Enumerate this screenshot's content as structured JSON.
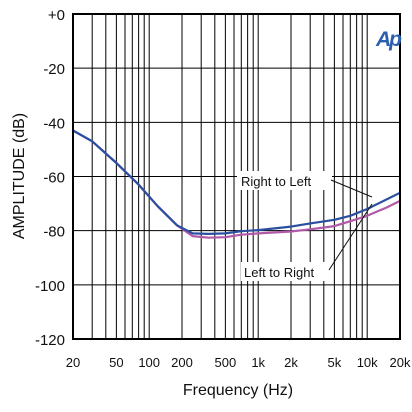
{
  "chart_data": {
    "type": "line",
    "xlabel": "Frequency (Hz)",
    "ylabel": "AMPLITUDE (dB)",
    "xscale": "log",
    "xlim": [
      20,
      20000
    ],
    "ylim": [
      -120,
      0
    ],
    "grid": true,
    "x_tick_values": [
      20,
      50,
      100,
      200,
      500,
      1000,
      2000,
      5000,
      10000,
      20000
    ],
    "x_tick_labels": [
      "20",
      "50",
      "100",
      "200",
      "500",
      "1k",
      "2k",
      "5k",
      "10k",
      "20k"
    ],
    "y_tick_values": [
      0,
      -20,
      -40,
      -60,
      -80,
      -100,
      -120
    ],
    "y_tick_labels": [
      "+0",
      "-20",
      "-40",
      "-60",
      "-80",
      "-100",
      "-120"
    ],
    "logo": "Ap",
    "series": [
      {
        "name": "Left to Right",
        "color": "#b05aa8",
        "x": [
          20,
          30,
          50,
          80,
          120,
          180,
          250,
          350,
          500,
          700,
          1000,
          2000,
          3000,
          5000,
          7000,
          10000,
          15000,
          20000
        ],
        "y": [
          -43,
          -47,
          -55,
          -63,
          -71,
          -78,
          -82,
          -82.6,
          -82.4,
          -81.5,
          -81,
          -80.3,
          -79.5,
          -78.3,
          -76.5,
          -74.5,
          -71.5,
          -69
        ]
      },
      {
        "name": "Right to Left",
        "color": "#2a4fa0",
        "x": [
          20,
          30,
          50,
          80,
          120,
          180,
          250,
          350,
          500,
          700,
          1000,
          2000,
          3000,
          5000,
          7000,
          10000,
          15000,
          20000
        ],
        "y": [
          -43,
          -47,
          -55,
          -63,
          -71,
          -78,
          -81,
          -81.2,
          -81,
          -80.2,
          -79.8,
          -78.5,
          -77.3,
          -76,
          -74.5,
          -72,
          -68.5,
          -66
        ]
      }
    ],
    "annotations": [
      "Right to Left",
      "Left to Right"
    ]
  }
}
